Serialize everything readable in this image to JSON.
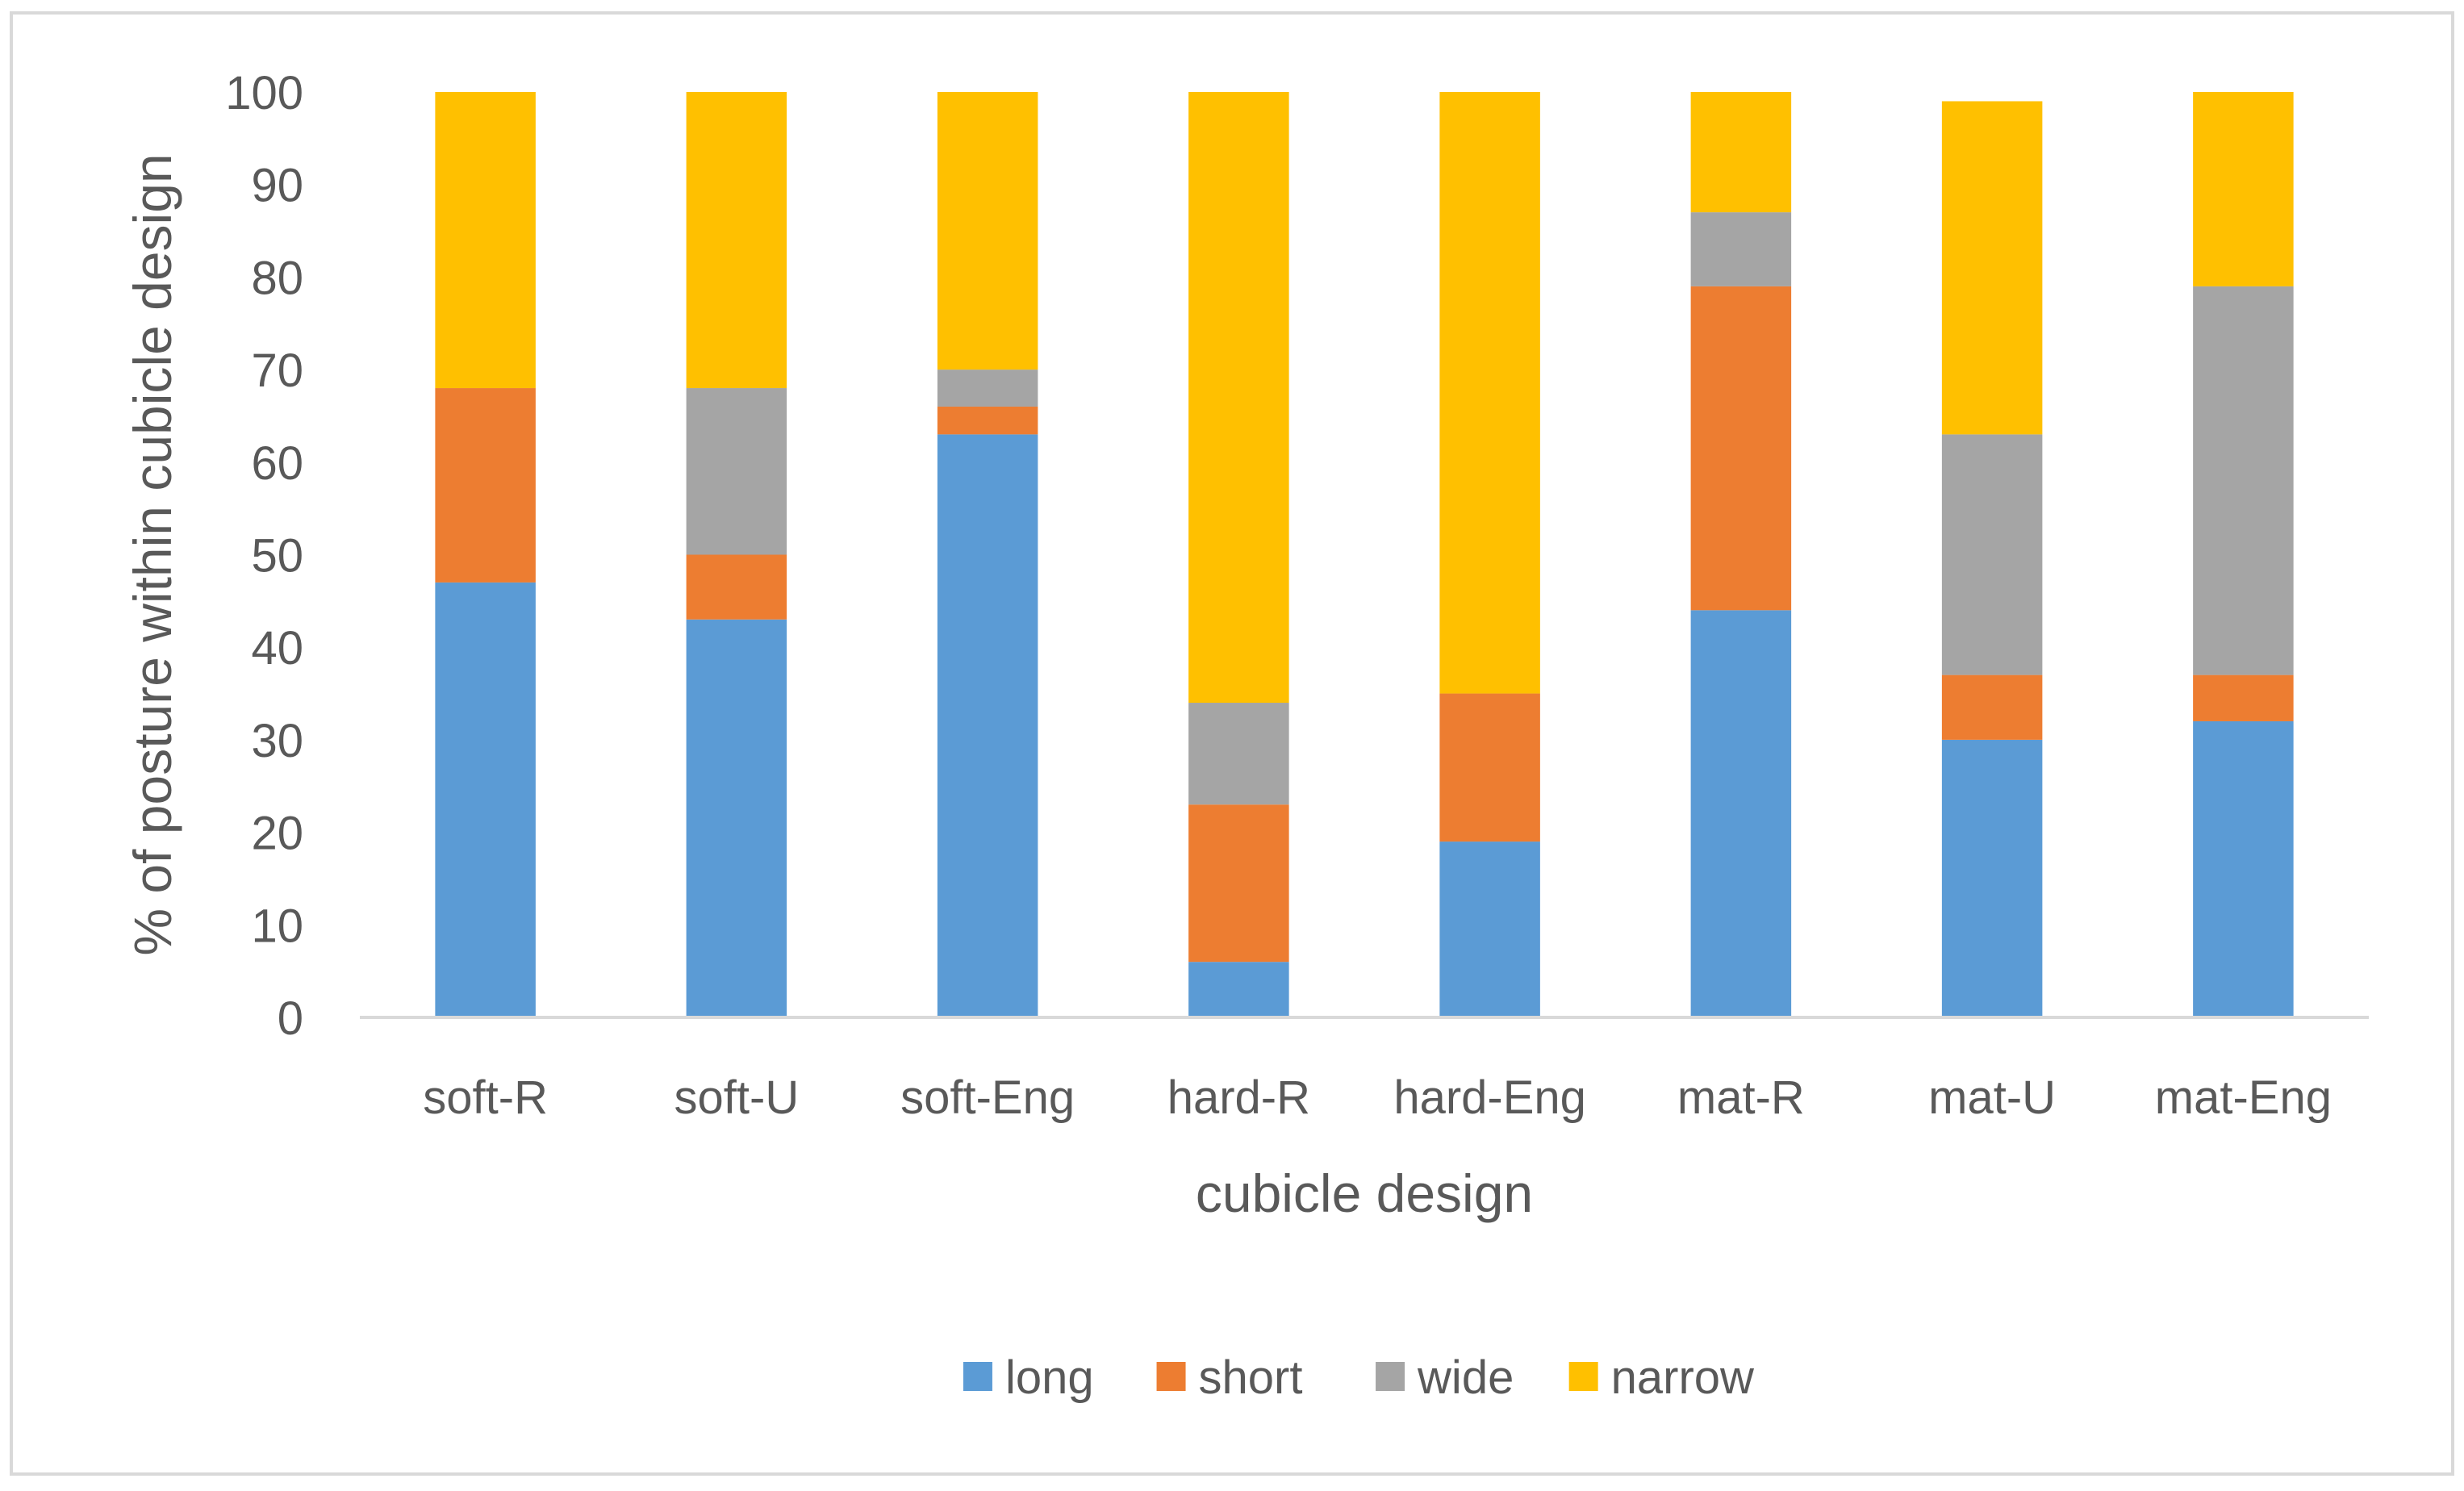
{
  "chart_data": {
    "type": "bar",
    "stacked": true,
    "title": "",
    "xlabel": "cubicle design",
    "ylabel": "% of posture within cubicle design",
    "ylim": [
      0,
      100
    ],
    "yticks": [
      "0",
      "10",
      "20",
      "30",
      "40",
      "50",
      "60",
      "70",
      "80",
      "90",
      "100"
    ],
    "grid": false,
    "legend_position": "bottom",
    "categories": [
      "soft-R",
      "soft-U",
      "soft-Eng",
      "hard-R",
      "hard-Eng",
      "mat-R",
      "mat-U",
      "mat-Eng"
    ],
    "series": [
      {
        "name": "long",
        "color": "#5b9bd5",
        "values": [
          47,
          43,
          63,
          6,
          19,
          44,
          30,
          32
        ]
      },
      {
        "name": "short",
        "color": "#ed7d31",
        "values": [
          21,
          7,
          3,
          17,
          16,
          35,
          7,
          5
        ]
      },
      {
        "name": "wide",
        "color": "#a5a5a5",
        "values": [
          0,
          18,
          4,
          11,
          0,
          8,
          26,
          42
        ]
      },
      {
        "name": "narrow",
        "color": "#ffc000",
        "values": [
          32,
          32,
          30,
          66,
          65,
          13,
          36,
          21
        ]
      }
    ]
  }
}
